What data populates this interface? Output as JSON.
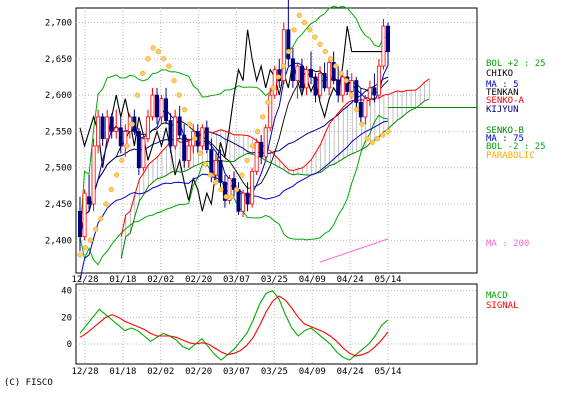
{
  "chart_data": [
    {
      "type": "candlestick",
      "panel": "price",
      "x_ticks": [
        "12/28",
        "01/18",
        "02/02",
        "02/20",
        "03/07",
        "03/25",
        "04/09",
        "04/24",
        "05/14"
      ],
      "y_ticks": [
        "2,400",
        "2,450",
        "2,500",
        "2,550",
        "2,600",
        "2,650",
        "2,700"
      ],
      "ylim": [
        2355,
        2720
      ],
      "legend": [
        {
          "text": "BOL +2 : 25",
          "color": "#00aa00"
        },
        {
          "text": "CHIKO",
          "color": "#000000"
        },
        {
          "text": "MA : 5",
          "color": "#0000cc"
        },
        {
          "text": "TENKAN",
          "color": "#000000"
        },
        {
          "text": "SENKO-A",
          "color": "#ff0000"
        },
        {
          "text": "KIJYUN",
          "color": "#000080"
        },
        {
          "text": "SENKO-B",
          "color": "#008800"
        },
        {
          "text": "MA : 75",
          "color": "#0000cc"
        },
        {
          "text": "BOL -2 : 25",
          "color": "#00aa00"
        },
        {
          "text": "PARABOLIC",
          "color": "#ffaa00"
        },
        {
          "text": "MA : 200",
          "color": "#ff66cc"
        }
      ],
      "candles": [
        [
          2440,
          2460,
          2385,
          2405
        ],
        [
          2405,
          2470,
          2400,
          2465
        ],
        [
          2460,
          2490,
          2440,
          2450
        ],
        [
          2450,
          2540,
          2440,
          2530
        ],
        [
          2530,
          2580,
          2520,
          2570
        ],
        [
          2570,
          2575,
          2530,
          2540
        ],
        [
          2540,
          2580,
          2530,
          2570
        ],
        [
          2570,
          2575,
          2540,
          2550
        ],
        [
          2550,
          2580,
          2540,
          2555
        ],
        [
          2555,
          2570,
          2520,
          2530
        ],
        [
          2530,
          2560,
          2515,
          2550
        ],
        [
          2550,
          2575,
          2540,
          2570
        ],
        [
          2570,
          2580,
          2545,
          2550
        ],
        [
          2550,
          2555,
          2490,
          2500
        ],
        [
          2500,
          2545,
          2495,
          2540
        ],
        [
          2540,
          2580,
          2535,
          2570
        ],
        [
          2570,
          2610,
          2565,
          2600
        ],
        [
          2600,
          2610,
          2560,
          2570
        ],
        [
          2570,
          2600,
          2560,
          2595
        ],
        [
          2595,
          2610,
          2560,
          2565
        ],
        [
          2565,
          2575,
          2520,
          2530
        ],
        [
          2530,
          2580,
          2525,
          2570
        ],
        [
          2570,
          2585,
          2540,
          2545
        ],
        [
          2545,
          2560,
          2500,
          2510
        ],
        [
          2510,
          2540,
          2500,
          2530
        ],
        [
          2530,
          2560,
          2520,
          2550
        ],
        [
          2550,
          2560,
          2520,
          2530
        ],
        [
          2530,
          2560,
          2525,
          2555
        ],
        [
          2555,
          2565,
          2520,
          2525
        ],
        [
          2525,
          2540,
          2480,
          2490
        ],
        [
          2490,
          2520,
          2480,
          2510
        ],
        [
          2510,
          2525,
          2470,
          2480
        ],
        [
          2480,
          2490,
          2445,
          2455
        ],
        [
          2455,
          2490,
          2450,
          2485
        ],
        [
          2485,
          2495,
          2460,
          2470
        ],
        [
          2470,
          2480,
          2435,
          2440
        ],
        [
          2440,
          2470,
          2432,
          2465
        ],
        [
          2465,
          2480,
          2440,
          2450
        ],
        [
          2450,
          2500,
          2445,
          2495
        ],
        [
          2495,
          2540,
          2490,
          2535
        ],
        [
          2535,
          2545,
          2505,
          2515
        ],
        [
          2515,
          2560,
          2510,
          2555
        ],
        [
          2555,
          2610,
          2550,
          2600
        ],
        [
          2600,
          2640,
          2595,
          2635
        ],
        [
          2635,
          2650,
          2610,
          2620
        ],
        [
          2620,
          2700,
          2615,
          2690
        ],
        [
          2690,
          2735,
          2640,
          2650
        ],
        [
          2650,
          2665,
          2610,
          2620
        ],
        [
          2620,
          2645,
          2595,
          2640
        ],
        [
          2640,
          2650,
          2605,
          2610
        ],
        [
          2610,
          2640,
          2600,
          2635
        ],
        [
          2635,
          2660,
          2615,
          2625
        ],
        [
          2625,
          2630,
          2590,
          2600
        ],
        [
          2600,
          2640,
          2595,
          2630
        ],
        [
          2630,
          2645,
          2605,
          2610
        ],
        [
          2610,
          2650,
          2600,
          2645
        ],
        [
          2645,
          2660,
          2615,
          2620
        ],
        [
          2620,
          2640,
          2590,
          2600
        ],
        [
          2600,
          2630,
          2590,
          2625
        ],
        [
          2625,
          2635,
          2600,
          2605
        ],
        [
          2605,
          2630,
          2595,
          2620
        ],
        [
          2620,
          2625,
          2580,
          2590
        ],
        [
          2590,
          2610,
          2560,
          2570
        ],
        [
          2570,
          2600,
          2560,
          2595
        ],
        [
          2595,
          2620,
          2585,
          2610
        ],
        [
          2610,
          2630,
          2590,
          2600
        ],
        [
          2600,
          2650,
          2595,
          2640
        ],
        [
          2640,
          2705,
          2635,
          2695
        ],
        [
          2695,
          2700,
          2640,
          2660
        ]
      ],
      "parabolic": [
        2380,
        2390,
        2400,
        2415,
        2430,
        2450,
        2470,
        2490,
        2510,
        2530,
        2560,
        2600,
        2630,
        2650,
        2665,
        2660,
        2650,
        2640,
        2620,
        2600,
        2580,
        2560,
        2540,
        2520,
        2505,
        2490,
        2480,
        2470,
        2460,
        2460,
        2470,
        2490,
        2510,
        2530,
        2550,
        2570,
        2590,
        2610,
        2625,
        2640,
        2660,
        2690,
        2710,
        2700,
        2690,
        2680,
        2670,
        2660,
        2650,
        2640,
        2630,
        2620,
        2600,
        2580,
        2560,
        2540,
        2535,
        2540,
        2545,
        2550
      ]
    },
    {
      "type": "line",
      "panel": "macd",
      "y_ticks": [
        "0",
        "20",
        "40"
      ],
      "ylim": [
        -15,
        45
      ],
      "series": [
        {
          "name": "MACD",
          "color": "#00aa00",
          "values": [
            8,
            14,
            20,
            26,
            22,
            18,
            14,
            10,
            12,
            10,
            6,
            2,
            5,
            8,
            6,
            3,
            -2,
            -4,
            0,
            4,
            -2,
            -8,
            -12,
            -8,
            -4,
            2,
            8,
            18,
            30,
            38,
            40,
            34,
            22,
            12,
            6,
            10,
            12,
            8,
            4,
            0,
            -6,
            -10,
            -12,
            -8,
            -4,
            0,
            6,
            14,
            18
          ]
        },
        {
          "name": "SIGNAL",
          "color": "#ff0000",
          "values": [
            5,
            8,
            12,
            16,
            20,
            22,
            20,
            17,
            15,
            13,
            11,
            8,
            6,
            6,
            6,
            5,
            3,
            1,
            0,
            1,
            0,
            -3,
            -6,
            -8,
            -7,
            -5,
            -1,
            5,
            14,
            24,
            32,
            36,
            33,
            27,
            20,
            15,
            13,
            11,
            9,
            6,
            2,
            -3,
            -7,
            -9,
            -8,
            -6,
            -2,
            3,
            9
          ]
        }
      ]
    }
  ],
  "labels": {
    "macd": "MACD",
    "signal": "SIGNAL",
    "copyright": "(C) FISCO"
  }
}
